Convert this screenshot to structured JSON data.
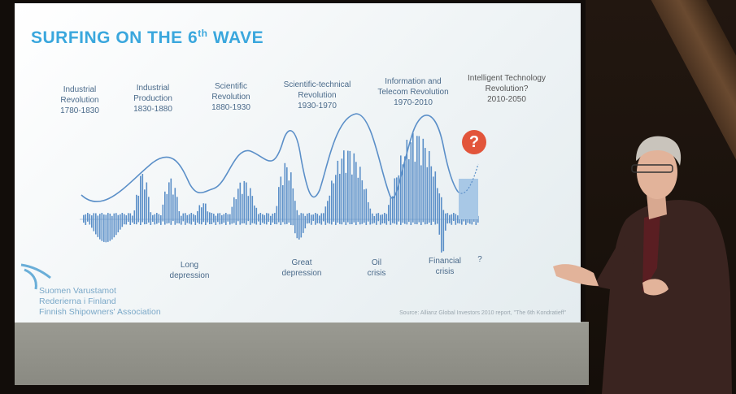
{
  "slide": {
    "title": "SURFING ON THE 6",
    "title_sup": "th",
    "title_end": " WAVE",
    "eras": [
      {
        "label": "Industrial\nRevolution\n1780-1830"
      },
      {
        "label": "Industrial\nProduction\n1830-1880"
      },
      {
        "label": "Scientific\nRevolution\n1880-1930"
      },
      {
        "label": "Scientific-technical\nRevolution\n1930-1970"
      },
      {
        "label": "Information and\nTelecom Revolution\n1970-2010"
      },
      {
        "label": "Intelligent Technology\nRevolution?\n2010-2050"
      }
    ],
    "notes": [
      {
        "label": "Long\ndepression"
      },
      {
        "label": "Great\ndepression"
      },
      {
        "label": "Oil\ncrisis"
      },
      {
        "label": "Financial\ncrisis"
      },
      {
        "label": "?"
      }
    ],
    "question_badge": "?",
    "logo_lines": [
      "Suomen Varustamot",
      "Rederierna i Finland",
      "Finnish Shipowners' Association"
    ],
    "source": "Source: Allianz Global Investors 2010 report, \"The 6th Kondratieff\""
  },
  "colors": {
    "title": "#3aa7dd",
    "wave": "#5b8fc8",
    "bars": "#5b8fc8",
    "badge": "#e2553b"
  }
}
